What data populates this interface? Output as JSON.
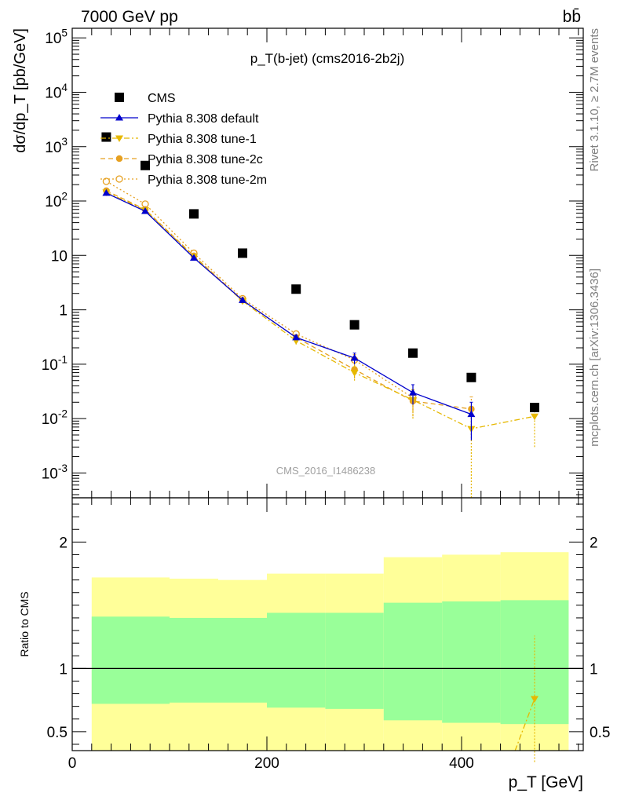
{
  "header": {
    "energy_label": "7000 GeV pp",
    "process_label": "bb̄"
  },
  "side_labels": {
    "rivet": "Rivet 3.1.10, ≥ 2.7M events",
    "source": "mcplots.cern.ch [arXiv:1306.3436]"
  },
  "chart_data": [
    {
      "panel": "main",
      "type": "scatter",
      "title": "p_T(b-jet) (cms2016-2b2j)",
      "watermark": "CMS_2016_I1486238",
      "ylabel": "dσ/dp_T [pb/GeV]",
      "yscale": "log",
      "ylim": [
        0.00035,
        150000
      ],
      "xlim": [
        0,
        525
      ],
      "legend_placement": "upper-left",
      "y_tick_labels": [
        "10^-3",
        "10^-2",
        "10^-1",
        "1",
        "10",
        "10^2",
        "10^3",
        "10^4",
        "10^5"
      ],
      "series": [
        {
          "name": "CMS",
          "color": "#000000",
          "marker": "square",
          "x": [
            35,
            75,
            125,
            175,
            230,
            290,
            350,
            410,
            475
          ],
          "y": [
            1500,
            450,
            58,
            11,
            2.4,
            0.53,
            0.16,
            0.057,
            0.016
          ]
        },
        {
          "name": "Pythia 8.308 default",
          "color": "#0000cc",
          "marker": "triangle-up",
          "line": "solid",
          "x": [
            35,
            75,
            125,
            175,
            230,
            290,
            350,
            410
          ],
          "y": [
            140,
            65,
            9,
            1.5,
            0.31,
            0.13,
            0.03,
            0.012
          ],
          "yerr": [
            5,
            3,
            0.4,
            0.1,
            0.03,
            0.03,
            0.012,
            0.008
          ]
        },
        {
          "name": "Pythia 8.308 tune-1",
          "color": "#e6b800",
          "marker": "triangle-down",
          "line": "dashdot",
          "x": [
            35,
            75,
            125,
            175,
            230,
            290,
            350,
            410,
            475
          ],
          "y": [
            145,
            68,
            9.5,
            1.45,
            0.27,
            0.07,
            0.022,
            0.0065,
            0.011
          ],
          "yerr": [
            5,
            3,
            0.4,
            0.1,
            0.04,
            0.02,
            0.012,
            0.0063,
            0.008
          ]
        },
        {
          "name": "Pythia 8.308 tune-2c",
          "color": "#e6a020",
          "marker": "circle",
          "line": "dashed",
          "x": [
            35,
            75,
            125,
            175,
            230,
            290,
            350,
            410
          ],
          "y": [
            155,
            70,
            9.8,
            1.5,
            0.31,
            0.08,
            0.021,
            0.015
          ],
          "yerr": [
            5,
            3,
            0.4,
            0.1,
            0.04,
            0.025,
            0.01,
            0.01
          ]
        },
        {
          "name": "Pythia 8.308 tune-2m",
          "color": "#e6a020",
          "marker": "circle-open",
          "line": "dotted",
          "x": [
            35,
            75,
            125,
            175,
            230,
            290,
            350
          ],
          "y": [
            230,
            88,
            11,
            1.6,
            0.36,
            0.12,
            0.024
          ],
          "yerr": [
            6,
            3,
            0.5,
            0.1,
            0.04,
            0.03,
            0.01
          ]
        }
      ]
    },
    {
      "panel": "ratio",
      "type": "area",
      "ylabel": "Ratio to CMS",
      "xlabel": "p_T [GeV]",
      "ylim": [
        0.35,
        2.35
      ],
      "xlim": [
        0,
        525
      ],
      "x_tick_labels": [
        "0",
        "200",
        "400"
      ],
      "y_tick_labels": [
        "0.5",
        "1",
        "2"
      ],
      "bands": {
        "bin_edges": [
          20,
          50,
          100,
          150,
          200,
          260,
          320,
          380,
          440,
          510
        ],
        "yellow_low": [
          0.35,
          0.35,
          0.35,
          0.35,
          0.35,
          0.35,
          0.35,
          0.35,
          0.35
        ],
        "green_low": [
          0.72,
          0.72,
          0.73,
          0.73,
          0.69,
          0.68,
          0.59,
          0.57,
          0.56
        ],
        "green_high": [
          1.41,
          1.41,
          1.4,
          1.4,
          1.44,
          1.44,
          1.52,
          1.53,
          1.54
        ],
        "yellow_high": [
          1.72,
          1.72,
          1.71,
          1.7,
          1.75,
          1.75,
          1.88,
          1.9,
          1.92
        ]
      },
      "series": [
        {
          "name": "Pythia 8.308 tune-1",
          "color": "#e6b800",
          "marker": "triangle-down",
          "x": [
            455,
            475
          ],
          "y": [
            0.35,
            0.76
          ],
          "yerr": [
            0,
            0.5
          ]
        }
      ]
    }
  ]
}
